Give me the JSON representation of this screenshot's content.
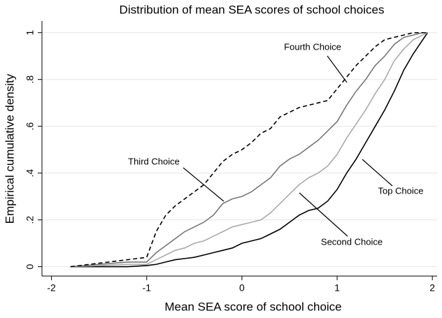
{
  "chart_data": {
    "type": "line",
    "title": "Distribution of mean SEA scores of school choices",
    "x_label": "Mean SEA score of school choice",
    "y_label": "Empirical cumulative density",
    "xlim": [
      -2.1,
      2.05
    ],
    "xticks": [
      -2,
      -1,
      0,
      1,
      2
    ],
    "ylim": [
      -0.04,
      1.05
    ],
    "yticks": [
      0,
      {
        "value": 0.2,
        "label": ".2"
      },
      {
        "value": 0.4,
        "label": ".4"
      },
      {
        "value": 0.6,
        "label": ".6"
      },
      {
        "value": 0.8,
        "label": ".8"
      },
      1
    ],
    "grid": true,
    "x": [
      -1.8,
      -1.2,
      -1.0,
      -0.9,
      -0.8,
      -0.7,
      -0.6,
      -0.5,
      -0.4,
      -0.3,
      -0.2,
      -0.1,
      0,
      0.1,
      0.2,
      0.3,
      0.4,
      0.5,
      0.6,
      0.7,
      0.8,
      0.9,
      1.0,
      1.1,
      1.2,
      1.3,
      1.4,
      1.5,
      1.6,
      1.7,
      1.8,
      1.9,
      1.95
    ],
    "series": [
      {
        "name": "Top Choice",
        "color": "#000000",
        "dashed": false,
        "values": [
          0,
          0,
          0.005,
          0.01,
          0.02,
          0.03,
          0.035,
          0.04,
          0.05,
          0.06,
          0.07,
          0.08,
          0.1,
          0.11,
          0.12,
          0.14,
          0.16,
          0.19,
          0.22,
          0.24,
          0.25,
          0.28,
          0.33,
          0.4,
          0.46,
          0.53,
          0.6,
          0.67,
          0.75,
          0.84,
          0.91,
          0.97,
          1.0
        ]
      },
      {
        "name": "Second Choice",
        "color": "#aaaaaa",
        "dashed": false,
        "values": [
          0,
          0.01,
          0.01,
          0.03,
          0.05,
          0.07,
          0.08,
          0.1,
          0.11,
          0.13,
          0.15,
          0.17,
          0.18,
          0.19,
          0.2,
          0.23,
          0.27,
          0.31,
          0.35,
          0.38,
          0.4,
          0.43,
          0.48,
          0.55,
          0.61,
          0.67,
          0.74,
          0.8,
          0.88,
          0.93,
          0.97,
          0.99,
          1.0
        ]
      },
      {
        "name": "Third Choice",
        "color": "#777777",
        "dashed": false,
        "values": [
          0,
          0.02,
          0.02,
          0.06,
          0.09,
          0.12,
          0.15,
          0.17,
          0.19,
          0.22,
          0.27,
          0.29,
          0.3,
          0.32,
          0.35,
          0.38,
          0.43,
          0.46,
          0.48,
          0.51,
          0.54,
          0.58,
          0.62,
          0.69,
          0.75,
          0.8,
          0.86,
          0.9,
          0.95,
          0.98,
          0.99,
          1.0,
          1.0
        ]
      },
      {
        "name": "Fourth Choice",
        "color": "#000000",
        "dashed": true,
        "values": [
          0,
          0.03,
          0.04,
          0.15,
          0.22,
          0.26,
          0.29,
          0.32,
          0.35,
          0.4,
          0.45,
          0.48,
          0.5,
          0.53,
          0.57,
          0.59,
          0.64,
          0.66,
          0.68,
          0.69,
          0.7,
          0.71,
          0.76,
          0.81,
          0.86,
          0.9,
          0.94,
          0.97,
          0.98,
          0.99,
          1.0,
          1.0,
          1.0
        ]
      }
    ]
  }
}
